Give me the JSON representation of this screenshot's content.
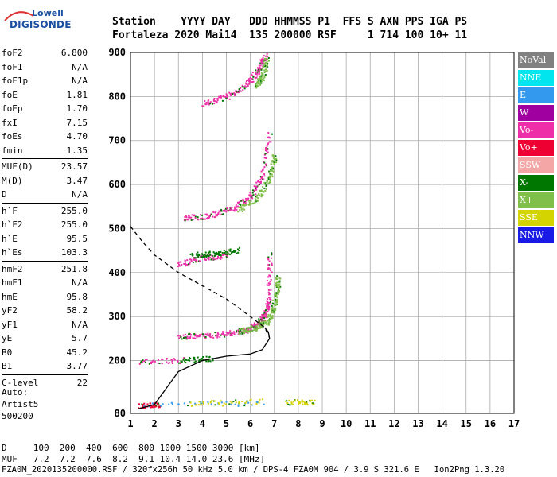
{
  "logo": {
    "top": "Lowell",
    "brand": "DIGISONDE"
  },
  "header": {
    "row1": "Station    YYYY DAY   DDD HHMMSS P1  FFS S AXN PPS IGA PS",
    "row2": "Fortaleza 2020 Mai14  135 200000 RSF     1 714 100 10+ 11"
  },
  "params": [
    {
      "label": "foF2",
      "value": "6.800"
    },
    {
      "label": "foF1",
      "value": "N/A"
    },
    {
      "label": "foF1p",
      "value": "N/A"
    },
    {
      "label": "foE",
      "value": "1.81"
    },
    {
      "label": "foEp",
      "value": "1.70"
    },
    {
      "label": "fxI",
      "value": "7.15"
    },
    {
      "label": "foEs",
      "value": "4.70"
    },
    {
      "label": "fmin",
      "value": "1.35"
    },
    {
      "sep": true
    },
    {
      "label": "MUF(D)",
      "value": "23.57"
    },
    {
      "label": "M(D)",
      "value": "3.47"
    },
    {
      "label": "D",
      "value": "N/A"
    },
    {
      "sep": true
    },
    {
      "label": "h`F",
      "value": "255.0"
    },
    {
      "label": "h`F2",
      "value": "255.0"
    },
    {
      "label": "h`E",
      "value": "95.5"
    },
    {
      "label": "h`Es",
      "value": "103.3"
    },
    {
      "sep": true
    },
    {
      "label": "hmF2",
      "value": "251.8"
    },
    {
      "label": "hmF1",
      "value": "N/A"
    },
    {
      "label": "hmE",
      "value": "95.8"
    },
    {
      "label": "yF2",
      "value": "58.2"
    },
    {
      "label": "yF1",
      "value": "N/A"
    },
    {
      "label": "yE",
      "value": "5.7"
    },
    {
      "label": "B0",
      "value": "45.2"
    },
    {
      "label": "B1",
      "value": "3.77"
    },
    {
      "sep": true
    },
    {
      "label": "C-level",
      "value": "22"
    }
  ],
  "auto": {
    "line1": "Auto:",
    "line2": "Artist5",
    "line3": "500200"
  },
  "legend": [
    {
      "label": "NoVal",
      "color": "#808080"
    },
    {
      "label": "NNE",
      "color": "#00e5ee"
    },
    {
      "label": "E",
      "color": "#3399ee"
    },
    {
      "label": "W",
      "color": "#a0009f"
    },
    {
      "label": "Vo-",
      "color": "#ee2ea8"
    },
    {
      "label": "Vo+",
      "color": "#ee0033"
    },
    {
      "label": "SSW",
      "color": "#f4a6a6"
    },
    {
      "label": "X-",
      "color": "#007700"
    },
    {
      "label": "X+",
      "color": "#7fbf4a"
    },
    {
      "label": "SSE",
      "color": "#d4d400"
    },
    {
      "label": "NNW",
      "color": "#1a1ae6"
    }
  ],
  "footer": {
    "line1": "D     100  200  400  600  800 1000 1500 3000 [km]",
    "line2": "MUF   7.2  7.2  7.6  8.2  9.1 10.4 14.0 23.6 [MHz]",
    "line3": "FZA0M_2020135200000.RSF / 320fx256h 50 kHz 5.0 km / DPS-4 FZA0M 904 / 3.9 S 321.6 E   Ion2Png 1.3.20"
  },
  "chart_data": {
    "type": "scatter",
    "xlim": [
      1,
      17
    ],
    "ylim": [
      80,
      900
    ],
    "xticks": [
      1,
      2,
      3,
      4,
      5,
      6,
      7,
      8,
      9,
      10,
      11,
      12,
      13,
      14,
      15,
      16,
      17
    ],
    "yticks": [
      80,
      200,
      300,
      400,
      500,
      600,
      700,
      800,
      900
    ],
    "grid": true,
    "echo_traces": [
      {
        "name": "Es",
        "color": "#3399ee",
        "x": [
          1.3,
          6.6
        ],
        "y": [
          100,
          106
        ]
      },
      {
        "name": "Es-yellow",
        "color": "#d4d400",
        "x": [
          3.5,
          6.5
        ],
        "y": [
          103,
          108
        ]
      },
      {
        "name": "E-low",
        "color": "#ee0033",
        "x": [
          1.35,
          2.2
        ],
        "y": [
          98,
          100
        ]
      },
      {
        "name": "Es-multi",
        "color": "#d4d400",
        "x": [
          7.5,
          8.7
        ],
        "y": [
          106,
          108
        ]
      },
      {
        "name": "F-horizontal",
        "color": "#ee2ea8",
        "x": [
          1.3,
          3.2
        ],
        "y": [
          198,
          202
        ]
      },
      {
        "name": "F-green",
        "color": "#007700",
        "x": [
          3.0,
          4.5
        ],
        "y": [
          202,
          205
        ]
      },
      {
        "name": "F2-O",
        "color": "#ee2ea8",
        "x": [
          3.0,
          4.0,
          5.0,
          5.8,
          6.3,
          6.6,
          6.75,
          6.8
        ],
        "y": [
          255,
          258,
          262,
          270,
          285,
          305,
          340,
          450
        ]
      },
      {
        "name": "F2-X",
        "color": "#7fbf4a",
        "x": [
          5.5,
          6.2,
          6.7,
          6.95,
          7.1,
          7.15
        ],
        "y": [
          268,
          275,
          290,
          320,
          360,
          390
        ]
      },
      {
        "name": "F-2hop-low",
        "color": "#ee2ea8",
        "x": [
          3.0,
          4.0,
          5.0
        ],
        "y": [
          420,
          435,
          440
        ]
      },
      {
        "name": "F-2hop-green",
        "color": "#007700",
        "x": [
          3.5,
          4.5,
          5.5
        ],
        "y": [
          440,
          445,
          452
        ]
      },
      {
        "name": "F2-2hop",
        "color": "#ee2ea8",
        "x": [
          3.2,
          4.2,
          5.2,
          6.0,
          6.5,
          6.8
        ],
        "y": [
          525,
          530,
          545,
          575,
          620,
          720
        ]
      },
      {
        "name": "F2-2hop-X",
        "color": "#7fbf4a",
        "x": [
          5.5,
          6.3,
          6.8,
          7.0
        ],
        "y": [
          545,
          570,
          620,
          670
        ]
      },
      {
        "name": "F2-3hop",
        "color": "#ee2ea8",
        "x": [
          4.0,
          5.0,
          5.8,
          6.3,
          6.6
        ],
        "y": [
          785,
          800,
          825,
          860,
          895
        ]
      },
      {
        "name": "F2-3hop-X",
        "color": "#7fbf4a",
        "x": [
          6.2,
          6.5,
          6.7
        ],
        "y": [
          820,
          850,
          890
        ]
      }
    ],
    "profile": {
      "x": [
        1.3,
        2.0,
        3.0,
        4.0,
        5.0,
        6.0,
        6.5,
        6.8,
        6.75,
        6.6
      ],
      "y": [
        90,
        100,
        175,
        200,
        210,
        215,
        225,
        250,
        265,
        275
      ]
    },
    "topside": {
      "x": [
        1.0,
        1.5,
        2.0,
        3.0,
        4.0,
        5.0,
        6.0,
        6.6,
        6.8
      ],
      "y": [
        505,
        470,
        440,
        400,
        370,
        340,
        300,
        275,
        252
      ]
    }
  }
}
